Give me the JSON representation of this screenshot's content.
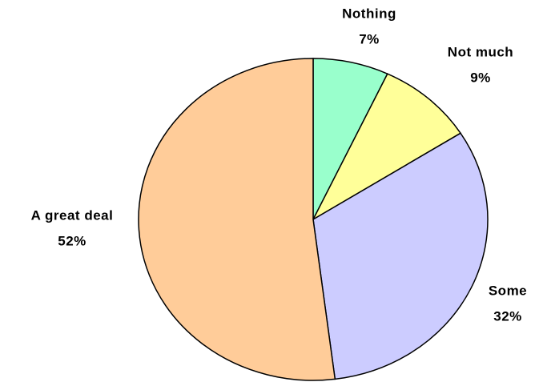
{
  "chart_data": {
    "type": "pie",
    "categories": [
      "Nothing",
      "Not much",
      "Some",
      "A great deal"
    ],
    "values": [
      7,
      9,
      32,
      52
    ],
    "value_labels": [
      "7%",
      "9%",
      "32%",
      "52%"
    ],
    "colors": [
      "#99ffcc",
      "#ffff99",
      "#ccccff",
      "#ffcc99"
    ]
  }
}
